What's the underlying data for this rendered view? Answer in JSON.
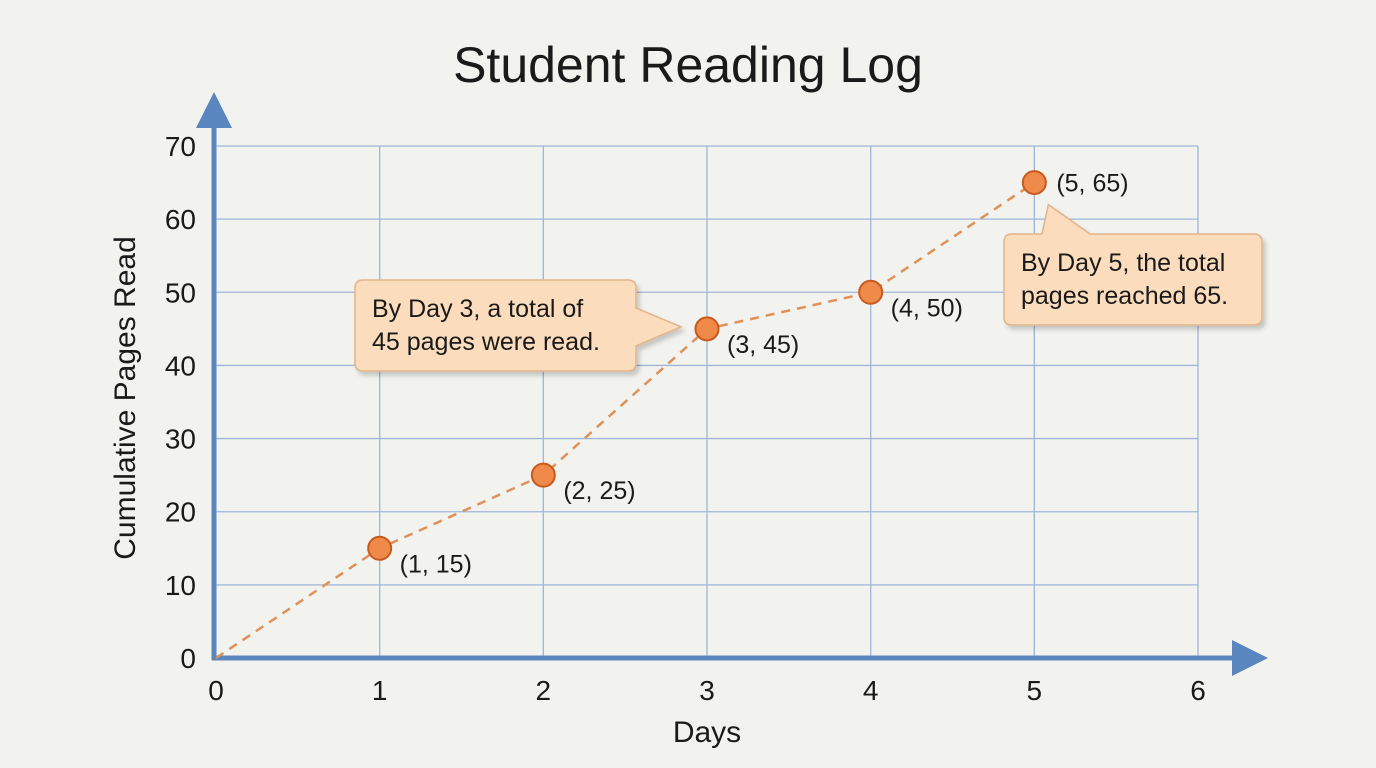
{
  "chart_data": {
    "type": "scatter",
    "title": "Student Reading Log",
    "xlabel": "Days",
    "ylabel": "Cumulative Pages Read",
    "xlim": [
      0,
      6
    ],
    "ylim": [
      0,
      70
    ],
    "x_ticks": [
      0,
      1,
      2,
      3,
      4,
      5,
      6
    ],
    "y_ticks": [
      0,
      10,
      20,
      30,
      40,
      50,
      60,
      70
    ],
    "grid": true,
    "line_style": "dashed",
    "colors": {
      "point_fill": "#f08a4b",
      "point_stroke": "#c85a1e",
      "line": "#e0915a",
      "axis": "#5a86c0",
      "grid": "#9fb6d8",
      "callout_fill": "#fbdcbc",
      "callout_stroke": "#e2b48c"
    },
    "series": [
      {
        "points": [
          {
            "x": 0,
            "y": 0,
            "label": ""
          },
          {
            "x": 1,
            "y": 15,
            "label": "(1, 15)"
          },
          {
            "x": 2,
            "y": 25,
            "label": "(2, 25)"
          },
          {
            "x": 3,
            "y": 45,
            "label": "(3, 45)"
          },
          {
            "x": 4,
            "y": 50,
            "label": "(4, 50)"
          },
          {
            "x": 5,
            "y": 65,
            "label": "(5, 65)"
          }
        ]
      }
    ],
    "annotations": [
      {
        "lines": [
          "By Day 3, a total of",
          "45 pages were read."
        ],
        "target_x": 3,
        "target_y": 45
      },
      {
        "lines": [
          "By Day 5, the total",
          "pages reached 65."
        ],
        "target_x": 5,
        "target_y": 65
      }
    ]
  }
}
